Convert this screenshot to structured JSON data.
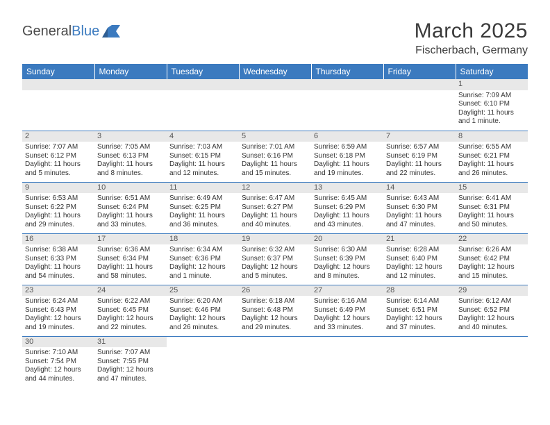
{
  "logo": {
    "main": "General",
    "accent": "Blue"
  },
  "title": "March 2025",
  "location": "Fischerbach, Germany",
  "colors": {
    "header_bg": "#3b7abf",
    "header_fg": "#ffffff",
    "daynum_bg": "#e8e8e8",
    "border": "#3b7abf",
    "text": "#333333"
  },
  "weekdays": [
    "Sunday",
    "Monday",
    "Tuesday",
    "Wednesday",
    "Thursday",
    "Friday",
    "Saturday"
  ],
  "weeks": [
    [
      null,
      null,
      null,
      null,
      null,
      null,
      {
        "n": "1",
        "sr": "Sunrise: 7:09 AM",
        "ss": "Sunset: 6:10 PM",
        "d1": "Daylight: 11 hours",
        "d2": "and 1 minute."
      }
    ],
    [
      {
        "n": "2",
        "sr": "Sunrise: 7:07 AM",
        "ss": "Sunset: 6:12 PM",
        "d1": "Daylight: 11 hours",
        "d2": "and 5 minutes."
      },
      {
        "n": "3",
        "sr": "Sunrise: 7:05 AM",
        "ss": "Sunset: 6:13 PM",
        "d1": "Daylight: 11 hours",
        "d2": "and 8 minutes."
      },
      {
        "n": "4",
        "sr": "Sunrise: 7:03 AM",
        "ss": "Sunset: 6:15 PM",
        "d1": "Daylight: 11 hours",
        "d2": "and 12 minutes."
      },
      {
        "n": "5",
        "sr": "Sunrise: 7:01 AM",
        "ss": "Sunset: 6:16 PM",
        "d1": "Daylight: 11 hours",
        "d2": "and 15 minutes."
      },
      {
        "n": "6",
        "sr": "Sunrise: 6:59 AM",
        "ss": "Sunset: 6:18 PM",
        "d1": "Daylight: 11 hours",
        "d2": "and 19 minutes."
      },
      {
        "n": "7",
        "sr": "Sunrise: 6:57 AM",
        "ss": "Sunset: 6:19 PM",
        "d1": "Daylight: 11 hours",
        "d2": "and 22 minutes."
      },
      {
        "n": "8",
        "sr": "Sunrise: 6:55 AM",
        "ss": "Sunset: 6:21 PM",
        "d1": "Daylight: 11 hours",
        "d2": "and 26 minutes."
      }
    ],
    [
      {
        "n": "9",
        "sr": "Sunrise: 6:53 AM",
        "ss": "Sunset: 6:22 PM",
        "d1": "Daylight: 11 hours",
        "d2": "and 29 minutes."
      },
      {
        "n": "10",
        "sr": "Sunrise: 6:51 AM",
        "ss": "Sunset: 6:24 PM",
        "d1": "Daylight: 11 hours",
        "d2": "and 33 minutes."
      },
      {
        "n": "11",
        "sr": "Sunrise: 6:49 AM",
        "ss": "Sunset: 6:25 PM",
        "d1": "Daylight: 11 hours",
        "d2": "and 36 minutes."
      },
      {
        "n": "12",
        "sr": "Sunrise: 6:47 AM",
        "ss": "Sunset: 6:27 PM",
        "d1": "Daylight: 11 hours",
        "d2": "and 40 minutes."
      },
      {
        "n": "13",
        "sr": "Sunrise: 6:45 AM",
        "ss": "Sunset: 6:29 PM",
        "d1": "Daylight: 11 hours",
        "d2": "and 43 minutes."
      },
      {
        "n": "14",
        "sr": "Sunrise: 6:43 AM",
        "ss": "Sunset: 6:30 PM",
        "d1": "Daylight: 11 hours",
        "d2": "and 47 minutes."
      },
      {
        "n": "15",
        "sr": "Sunrise: 6:41 AM",
        "ss": "Sunset: 6:31 PM",
        "d1": "Daylight: 11 hours",
        "d2": "and 50 minutes."
      }
    ],
    [
      {
        "n": "16",
        "sr": "Sunrise: 6:38 AM",
        "ss": "Sunset: 6:33 PM",
        "d1": "Daylight: 11 hours",
        "d2": "and 54 minutes."
      },
      {
        "n": "17",
        "sr": "Sunrise: 6:36 AM",
        "ss": "Sunset: 6:34 PM",
        "d1": "Daylight: 11 hours",
        "d2": "and 58 minutes."
      },
      {
        "n": "18",
        "sr": "Sunrise: 6:34 AM",
        "ss": "Sunset: 6:36 PM",
        "d1": "Daylight: 12 hours",
        "d2": "and 1 minute."
      },
      {
        "n": "19",
        "sr": "Sunrise: 6:32 AM",
        "ss": "Sunset: 6:37 PM",
        "d1": "Daylight: 12 hours",
        "d2": "and 5 minutes."
      },
      {
        "n": "20",
        "sr": "Sunrise: 6:30 AM",
        "ss": "Sunset: 6:39 PM",
        "d1": "Daylight: 12 hours",
        "d2": "and 8 minutes."
      },
      {
        "n": "21",
        "sr": "Sunrise: 6:28 AM",
        "ss": "Sunset: 6:40 PM",
        "d1": "Daylight: 12 hours",
        "d2": "and 12 minutes."
      },
      {
        "n": "22",
        "sr": "Sunrise: 6:26 AM",
        "ss": "Sunset: 6:42 PM",
        "d1": "Daylight: 12 hours",
        "d2": "and 15 minutes."
      }
    ],
    [
      {
        "n": "23",
        "sr": "Sunrise: 6:24 AM",
        "ss": "Sunset: 6:43 PM",
        "d1": "Daylight: 12 hours",
        "d2": "and 19 minutes."
      },
      {
        "n": "24",
        "sr": "Sunrise: 6:22 AM",
        "ss": "Sunset: 6:45 PM",
        "d1": "Daylight: 12 hours",
        "d2": "and 22 minutes."
      },
      {
        "n": "25",
        "sr": "Sunrise: 6:20 AM",
        "ss": "Sunset: 6:46 PM",
        "d1": "Daylight: 12 hours",
        "d2": "and 26 minutes."
      },
      {
        "n": "26",
        "sr": "Sunrise: 6:18 AM",
        "ss": "Sunset: 6:48 PM",
        "d1": "Daylight: 12 hours",
        "d2": "and 29 minutes."
      },
      {
        "n": "27",
        "sr": "Sunrise: 6:16 AM",
        "ss": "Sunset: 6:49 PM",
        "d1": "Daylight: 12 hours",
        "d2": "and 33 minutes."
      },
      {
        "n": "28",
        "sr": "Sunrise: 6:14 AM",
        "ss": "Sunset: 6:51 PM",
        "d1": "Daylight: 12 hours",
        "d2": "and 37 minutes."
      },
      {
        "n": "29",
        "sr": "Sunrise: 6:12 AM",
        "ss": "Sunset: 6:52 PM",
        "d1": "Daylight: 12 hours",
        "d2": "and 40 minutes."
      }
    ],
    [
      {
        "n": "30",
        "sr": "Sunrise: 7:10 AM",
        "ss": "Sunset: 7:54 PM",
        "d1": "Daylight: 12 hours",
        "d2": "and 44 minutes."
      },
      {
        "n": "31",
        "sr": "Sunrise: 7:07 AM",
        "ss": "Sunset: 7:55 PM",
        "d1": "Daylight: 12 hours",
        "d2": "and 47 minutes."
      },
      null,
      null,
      null,
      null,
      null
    ]
  ]
}
